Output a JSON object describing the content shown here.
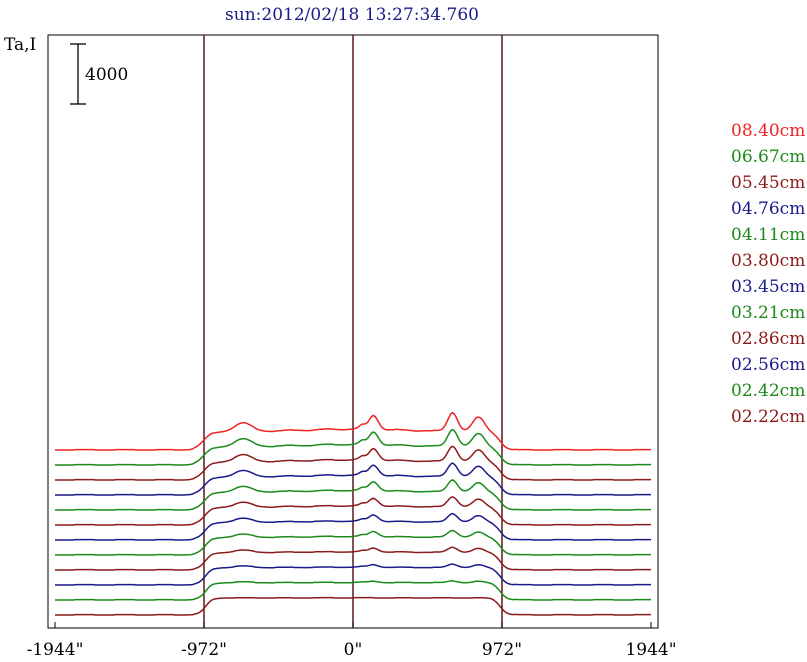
{
  "chart_data": {
    "type": "line",
    "title": "sun:2012/02/18 13:27:34.760",
    "ylabel": "Ta,I",
    "scale_bar_label": "4000",
    "xlim": [
      -1944,
      1944
    ],
    "x_ticks": [
      {
        "value": -1944,
        "label": "-1944\""
      },
      {
        "value": -972,
        "label": "-972\""
      },
      {
        "value": 0,
        "label": "0\""
      },
      {
        "value": 972,
        "label": "972\""
      },
      {
        "value": 1944,
        "label": "1944\""
      }
    ],
    "reference_lines_x": [
      -972,
      0,
      972
    ],
    "grid": false,
    "legend_position": "right",
    "series": [
      {
        "name": "08.40cm",
        "color": "#ee2222",
        "offset": 17000
      },
      {
        "name": "06.67cm",
        "color": "#1a8a1a",
        "offset": 15500
      },
      {
        "name": "05.45cm",
        "color": "#8b1a1a",
        "offset": 14000
      },
      {
        "name": "04.76cm",
        "color": "#1a1a8b",
        "offset": 12500
      },
      {
        "name": "04.11cm",
        "color": "#1a8a1a",
        "offset": 11000
      },
      {
        "name": "03.80cm",
        "color": "#8b1a1a",
        "offset": 9500
      },
      {
        "name": "03.45cm",
        "color": "#1a1a8b",
        "offset": 8000
      },
      {
        "name": "03.21cm",
        "color": "#1a8a1a",
        "offset": 6500
      },
      {
        "name": "02.86cm",
        "color": "#8b1a1a",
        "offset": 5000
      },
      {
        "name": "02.56cm",
        "color": "#1a1a8b",
        "offset": 3500
      },
      {
        "name": "02.42cm",
        "color": "#1a8a1a",
        "offset": 2000
      },
      {
        "name": "02.22cm",
        "color": "#8b1a1a",
        "offset": 500
      }
    ]
  }
}
